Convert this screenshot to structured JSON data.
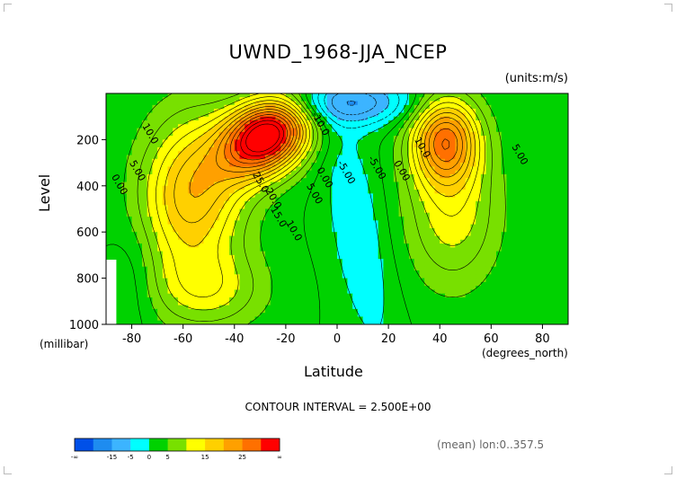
{
  "chart_data": {
    "type": "heatmap",
    "title": "UWND_1968-JJA_NCEP",
    "units_label": "(units:m/s)",
    "ylabel": "Level",
    "ylabel_units": "(millibar)",
    "xlabel": "Latitude",
    "xlabel_units": "(degrees_north)",
    "xlim": [
      -90,
      90
    ],
    "ylim": [
      1000,
      0
    ],
    "x_ticks": [
      -80,
      -60,
      -40,
      -20,
      0,
      20,
      40,
      60,
      80
    ],
    "x_tick_labels": [
      "-80",
      "-60",
      "-40",
      "-20",
      "0",
      "20",
      "40",
      "60",
      "80"
    ],
    "y_ticks": [
      200,
      400,
      600,
      800,
      1000
    ],
    "y_tick_labels": [
      "200",
      "400",
      "600",
      "800",
      "1000"
    ],
    "contour_interval_text": "CONTOUR INTERVAL = 2.500E+00",
    "contour_interval": 2.5,
    "jets": [
      {
        "lat": -30,
        "level": 200,
        "max_value": 35
      },
      {
        "lat": 42,
        "level": 200,
        "max_value": 22
      }
    ],
    "contour_labels": [
      {
        "text": "10.0",
        "lat": -76,
        "level": 140
      },
      {
        "text": "5.00",
        "lat": -81,
        "level": 300
      },
      {
        "text": "0.00",
        "lat": -88,
        "level": 360
      },
      {
        "text": "25.0",
        "lat": -33,
        "level": 350
      },
      {
        "text": "20.0",
        "lat": -28,
        "level": 420
      },
      {
        "text": "15.0",
        "lat": -26,
        "level": 500
      },
      {
        "text": "10.0",
        "lat": -20,
        "level": 560
      },
      {
        "text": "5.00",
        "lat": -12,
        "level": 400
      },
      {
        "text": "0.00",
        "lat": -8,
        "level": 330
      },
      {
        "text": "-10.0",
        "lat": -10,
        "level": 90
      },
      {
        "text": "-5.00",
        "lat": 0,
        "level": 300
      },
      {
        "text": "-5.00",
        "lat": 12,
        "level": 280
      },
      {
        "text": "0.00",
        "lat": 22,
        "level": 300
      },
      {
        "text": "10.0",
        "lat": 30,
        "level": 200
      },
      {
        "text": "5.00",
        "lat": 68,
        "level": 230
      }
    ],
    "colorbar": {
      "colors": [
        "#0050e8",
        "#1e8cf0",
        "#3cb4ff",
        "#00ffff",
        "#00d200",
        "#78e000",
        "#ffff00",
        "#ffd000",
        "#ffa000",
        "#ff7000",
        "#ff0000"
      ],
      "tick_labels": [
        "-∞",
        "-15",
        "-5",
        "0",
        "5",
        "15",
        "25",
        "∞"
      ]
    },
    "footer_note": "(mean) lon:0..357.5"
  }
}
